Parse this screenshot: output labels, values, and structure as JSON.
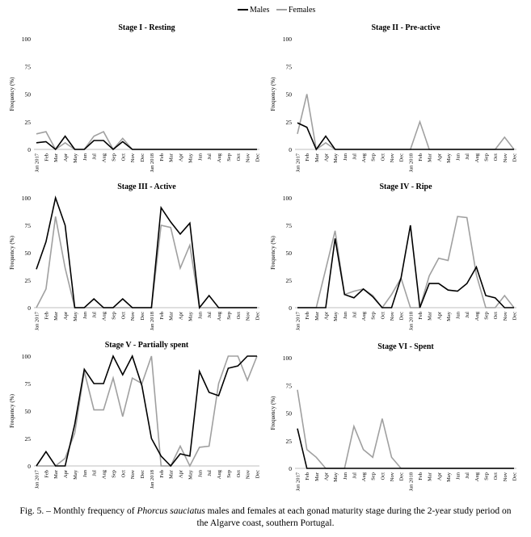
{
  "legend": {
    "placement": "top-center",
    "males_label": "Males",
    "females_label": "Females",
    "males_color": "#000000",
    "females_color": "#a0a0a0"
  },
  "caption": {
    "prefix": "Fig. 5. – Monthly frequency of ",
    "species": "Phorcus sauciatus",
    "suffix": " males and females at each gonad maturity stage during the 2-year study period on the Algarve coast, southern Portugal."
  },
  "chart_data": [
    {
      "type": "line",
      "title": "Stage I - Resting",
      "ylabel": "Frequency (%)",
      "ylim": [
        0,
        100
      ],
      "yticks": [
        0,
        25,
        50,
        75,
        100
      ],
      "grid": false,
      "categories": [
        "Jan 2017",
        "Feb",
        "Mar",
        "Apr",
        "May",
        "Jun",
        "Jul",
        "Aug",
        "Sep",
        "Oct",
        "Nov",
        "Dec",
        "Jan 2018",
        "Feb",
        "Mar",
        "Apr",
        "May",
        "Jun",
        "Jul",
        "Aug",
        "Sep",
        "Oct",
        "Nov",
        "Dec"
      ],
      "series": [
        {
          "name": "Males",
          "color": "#000000",
          "values": [
            6,
            7,
            0,
            12,
            0,
            0,
            8,
            8,
            0,
            7,
            0,
            0,
            0,
            0,
            0,
            0,
            0,
            0,
            0,
            0,
            0,
            0,
            0,
            0
          ]
        },
        {
          "name": "Females",
          "color": "#a0a0a0",
          "values": [
            14,
            16,
            0,
            6,
            0,
            0,
            12,
            16,
            0,
            10,
            0,
            0,
            0,
            0,
            0,
            0,
            0,
            0,
            0,
            0,
            0,
            0,
            0,
            0
          ]
        }
      ]
    },
    {
      "type": "line",
      "title": "Stage II - Pre-active",
      "ylabel": "Frequency (%)",
      "ylim": [
        0,
        100
      ],
      "yticks": [
        0,
        25,
        50,
        75,
        100
      ],
      "grid": false,
      "categories": [
        "Jan 2017",
        "Feb",
        "Mar",
        "Apr",
        "May",
        "Jun",
        "Jul",
        "Aug",
        "Sep",
        "Oct",
        "Nov",
        "Dec",
        "Jan 2018",
        "Feb",
        "Mar",
        "Apr",
        "May",
        "Jun",
        "Jul",
        "Aug",
        "Sep",
        "Oct",
        "Nov",
        "Dec"
      ],
      "series": [
        {
          "name": "Males",
          "color": "#000000",
          "values": [
            24,
            20,
            0,
            12,
            0,
            0,
            0,
            0,
            0,
            0,
            0,
            0,
            0,
            0,
            0,
            0,
            0,
            0,
            0,
            0,
            0,
            0,
            0,
            0
          ]
        },
        {
          "name": "Females",
          "color": "#a0a0a0",
          "values": [
            14,
            50,
            0,
            6,
            0,
            0,
            0,
            0,
            0,
            0,
            0,
            0,
            0,
            25,
            0,
            0,
            0,
            0,
            0,
            0,
            0,
            0,
            11,
            0
          ]
        }
      ]
    },
    {
      "type": "line",
      "title": "Stage III - Active",
      "ylabel": "Frequency (%)",
      "ylim": [
        0,
        100
      ],
      "yticks": [
        0,
        25,
        50,
        75,
        100
      ],
      "grid": false,
      "categories": [
        "Jan 2017",
        "Feb",
        "Mar",
        "Apr",
        "May",
        "Jun",
        "Jul",
        "Aug",
        "Sep",
        "Oct",
        "Nov",
        "Dec",
        "Jan 2018",
        "Feb",
        "Mar",
        "Apr",
        "May",
        "Jun",
        "Jul",
        "Aug",
        "Sep",
        "Oct",
        "Nov",
        "Dec"
      ],
      "series": [
        {
          "name": "Males",
          "color": "#000000",
          "values": [
            35,
            60,
            100,
            75,
            0,
            0,
            8,
            0,
            0,
            8,
            0,
            0,
            0,
            91,
            78,
            67,
            77,
            0,
            11,
            0,
            0,
            0,
            0,
            0
          ]
        },
        {
          "name": "Females",
          "color": "#a0a0a0",
          "values": [
            0,
            17,
            83,
            36,
            0,
            0,
            0,
            0,
            0,
            0,
            0,
            0,
            0,
            75,
            73,
            36,
            57,
            0,
            0,
            0,
            0,
            0,
            0,
            0
          ]
        }
      ]
    },
    {
      "type": "line",
      "title": "Stage IV - Ripe",
      "ylabel": "Frequency (%)",
      "ylim": [
        0,
        100
      ],
      "yticks": [
        0,
        25,
        50,
        75,
        100
      ],
      "grid": false,
      "categories": [
        "Jan 2017",
        "Feb",
        "Mar",
        "Apr",
        "May",
        "Jun",
        "Jul",
        "Aug",
        "Sep",
        "Oct",
        "Nov",
        "Dec",
        "Jan 2018",
        "Feb",
        "Mar",
        "Apr",
        "May",
        "Jun",
        "Jul",
        "Aug",
        "Sep",
        "Oct",
        "Nov",
        "Dec"
      ],
      "series": [
        {
          "name": "Males",
          "color": "#000000",
          "values": [
            0,
            0,
            0,
            0,
            63,
            12,
            9,
            17,
            10,
            0,
            0,
            27,
            75,
            0,
            22,
            22,
            16,
            15,
            22,
            37,
            11,
            9,
            0,
            0
          ]
        },
        {
          "name": "Females",
          "color": "#a0a0a0",
          "values": [
            0,
            0,
            0,
            35,
            70,
            12,
            15,
            17,
            11,
            0,
            12,
            27,
            0,
            0,
            29,
            45,
            43,
            83,
            82,
            30,
            0,
            0,
            11,
            0
          ]
        }
      ]
    },
    {
      "type": "line",
      "title": "Stage V - Partially spent",
      "ylabel": "Frequency (%)",
      "ylim": [
        0,
        100
      ],
      "yticks": [
        0,
        25,
        50,
        75,
        100
      ],
      "grid": false,
      "categories": [
        "Jan 2017",
        "Feb",
        "Mar",
        "Apr",
        "May",
        "Jun",
        "Jul",
        "Aug",
        "Sep",
        "Oct",
        "Nov",
        "Dec",
        "Jan 2018",
        "Feb",
        "Mar",
        "Apr",
        "May",
        "Jun",
        "Jul",
        "Aug",
        "Sep",
        "Oct",
        "Nov",
        "Dec"
      ],
      "series": [
        {
          "name": "Males",
          "color": "#000000",
          "values": [
            0,
            13,
            0,
            0,
            38,
            88,
            75,
            75,
            100,
            83,
            100,
            73,
            25,
            9,
            0,
            11,
            9,
            86,
            67,
            64,
            89,
            91,
            100,
            100
          ]
        },
        {
          "name": "Females",
          "color": "#a0a0a0",
          "values": [
            0,
            0,
            0,
            7,
            30,
            86,
            51,
            51,
            80,
            45,
            80,
            75,
            100,
            0,
            0,
            18,
            0,
            17,
            18,
            75,
            100,
            100,
            78,
            100
          ]
        }
      ]
    },
    {
      "type": "line",
      "title": "Stage VI - Spent",
      "ylabel": "Frequency (%)",
      "ylim": [
        0,
        100
      ],
      "yticks": [
        0,
        25,
        50,
        75,
        100
      ],
      "grid": false,
      "categories": [
        "Jan 2017",
        "Feb",
        "Mar",
        "Apr",
        "May",
        "Jun",
        "Jul",
        "Aug",
        "Sep",
        "Oct",
        "Nov",
        "Dec",
        "Jan 2018",
        "Feb",
        "Mar",
        "Apr",
        "May",
        "Jun",
        "Jul",
        "Aug",
        "Sep",
        "Oct",
        "Nov",
        "Dec"
      ],
      "series": [
        {
          "name": "Males",
          "color": "#000000",
          "values": [
            36,
            0,
            0,
            0,
            0,
            0,
            0,
            0,
            0,
            0,
            0,
            0,
            0,
            0,
            0,
            0,
            0,
            0,
            0,
            0,
            0,
            0,
            0,
            0
          ]
        },
        {
          "name": "Females",
          "color": "#a0a0a0",
          "values": [
            71,
            17,
            10,
            0,
            0,
            0,
            38,
            17,
            10,
            45,
            10,
            0,
            0,
            0,
            0,
            0,
            0,
            0,
            0,
            0,
            0,
            0,
            0,
            0
          ]
        }
      ]
    }
  ]
}
